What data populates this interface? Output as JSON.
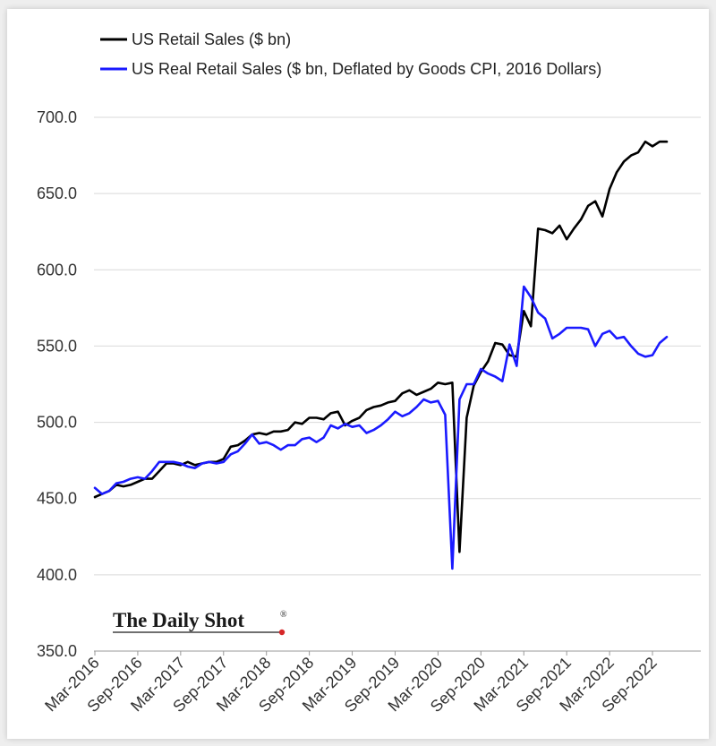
{
  "chart_data": {
    "type": "line",
    "title": "",
    "xlabel": "",
    "ylabel": "",
    "ylim": [
      350,
      700
    ],
    "y_ticks": [
      "350.0",
      "400.0",
      "450.0",
      "500.0",
      "550.0",
      "600.0",
      "650.0",
      "700.0"
    ],
    "x_ticks": [
      "Mar-2016",
      "Sep-2016",
      "Mar-2017",
      "Sep-2017",
      "Mar-2018",
      "Sep-2018",
      "Mar-2019",
      "Sep-2019",
      "Mar-2020",
      "Sep-2020",
      "Mar-2021",
      "Sep-2021",
      "Mar-2022",
      "Sep-2022"
    ],
    "grid": "horizontal",
    "legend_position": "top-left",
    "x": [
      "2016-03",
      "2016-04",
      "2016-05",
      "2016-06",
      "2016-07",
      "2016-08",
      "2016-09",
      "2016-10",
      "2016-11",
      "2016-12",
      "2017-01",
      "2017-02",
      "2017-03",
      "2017-04",
      "2017-05",
      "2017-06",
      "2017-07",
      "2017-08",
      "2017-09",
      "2017-10",
      "2017-11",
      "2017-12",
      "2018-01",
      "2018-02",
      "2018-03",
      "2018-04",
      "2018-05",
      "2018-06",
      "2018-07",
      "2018-08",
      "2018-09",
      "2018-10",
      "2018-11",
      "2018-12",
      "2019-01",
      "2019-02",
      "2019-03",
      "2019-04",
      "2019-05",
      "2019-06",
      "2019-07",
      "2019-08",
      "2019-09",
      "2019-10",
      "2019-11",
      "2019-12",
      "2020-01",
      "2020-02",
      "2020-03",
      "2020-04",
      "2020-05",
      "2020-06",
      "2020-07",
      "2020-08",
      "2020-09",
      "2020-10",
      "2020-11",
      "2020-12",
      "2021-01",
      "2021-02",
      "2021-03",
      "2021-04",
      "2021-05",
      "2021-06",
      "2021-07",
      "2021-08",
      "2021-09",
      "2021-10",
      "2021-11",
      "2021-12",
      "2022-01",
      "2022-02",
      "2022-03",
      "2022-04",
      "2022-05",
      "2022-06",
      "2022-07",
      "2022-08",
      "2022-09",
      "2022-10",
      "2022-11"
    ],
    "series": [
      {
        "name": "US Retail Sales ($ bn)",
        "color": "#000000",
        "values": [
          451,
          453,
          455,
          459,
          458,
          459,
          461,
          463,
          463,
          468,
          473,
          473,
          472,
          474,
          472,
          473,
          474,
          474,
          476,
          484,
          485,
          488,
          492,
          493,
          492,
          494,
          494,
          495,
          500,
          499,
          503,
          503,
          502,
          506,
          507,
          498,
          501,
          503,
          508,
          510,
          511,
          513,
          514,
          519,
          521,
          518,
          520,
          522,
          526,
          525,
          526,
          415,
          503,
          524,
          533,
          540,
          552,
          551,
          544,
          543,
          573,
          563,
          627,
          626,
          624,
          629,
          620,
          627,
          633,
          642,
          645,
          635,
          653,
          664,
          671,
          675,
          677,
          684,
          681,
          684,
          684
        ]
      },
      {
        "name": "US Real Retail Sales ($ bn, Deflated by Goods CPI, 2016 Dollars)",
        "color": "#1a1aff",
        "values": [
          457,
          453,
          455,
          460,
          461,
          463,
          464,
          463,
          468,
          474,
          474,
          474,
          473,
          471,
          470,
          473,
          474,
          473,
          474,
          479,
          481,
          486,
          492,
          486,
          487,
          485,
          482,
          485,
          485,
          489,
          490,
          487,
          490,
          498,
          496,
          499,
          497,
          498,
          493,
          495,
          498,
          502,
          507,
          504,
          506,
          510,
          515,
          513,
          514,
          505,
          404,
          515,
          525,
          525,
          535,
          532,
          530,
          527,
          551,
          537,
          589,
          582,
          572,
          568,
          555,
          558,
          562,
          562,
          562,
          561,
          550,
          558,
          560,
          555,
          556,
          550,
          545,
          543,
          544,
          552,
          556
        ]
      }
    ]
  },
  "legend": {
    "items": [
      {
        "label": "US Retail Sales ($ bn)",
        "color": "#000000"
      },
      {
        "label": "US Real Retail Sales ($ bn, Deflated by Goods CPI, 2016 Dollars)",
        "color": "#1a1aff"
      }
    ]
  },
  "branding": {
    "logo_text": "The Daily Shot",
    "logo_mark": "®",
    "dot_color": "#d62728"
  }
}
